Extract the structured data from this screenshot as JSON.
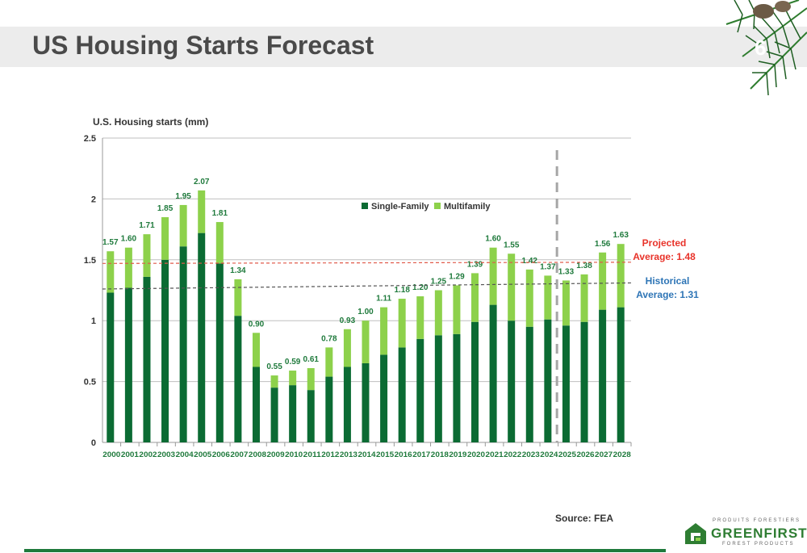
{
  "page": {
    "title": "US Housing Starts Forecast",
    "page_number": "6",
    "source": "Source: FEA",
    "logo": {
      "top_text": "PRODUITS FORESTIERS",
      "name": "GREENFIRST",
      "bottom_text": "FOREST PRODUCTS"
    }
  },
  "colors": {
    "single_family": "#0b6b33",
    "multifamily": "#8dd14b",
    "projected_line": "#e05a4a",
    "historical_line": "#555555",
    "projected_text": "#e8332a",
    "historical_text": "#2e75b6",
    "label_text": "#1f7a3c",
    "forecast_divider": "#a6a6a6"
  },
  "chart_data": {
    "type": "bar",
    "stacked": true,
    "ylabel": "U.S. Housing starts (mm)",
    "ylim": [
      0,
      2.5
    ],
    "yticks": [
      "0",
      "0.5",
      "1",
      "1.5",
      "2",
      "2.5"
    ],
    "categories": [
      "2000",
      "2001",
      "2002",
      "2003",
      "2004",
      "2005",
      "2006",
      "2007",
      "2008",
      "2009",
      "2010",
      "2011",
      "2012",
      "2013",
      "2014",
      "2015",
      "2016",
      "2017",
      "2018",
      "2019",
      "2020",
      "2021",
      "2022",
      "2023",
      "2024",
      "2025",
      "2026",
      "2027",
      "2028"
    ],
    "series": [
      {
        "name": "Single-Family",
        "values": [
          1.23,
          1.27,
          1.36,
          1.5,
          1.61,
          1.72,
          1.47,
          1.04,
          0.62,
          0.45,
          0.47,
          0.43,
          0.54,
          0.62,
          0.65,
          0.72,
          0.78,
          0.85,
          0.88,
          0.89,
          0.99,
          1.13,
          1.0,
          0.95,
          1.01,
          0.96,
          0.99,
          1.09,
          1.11
        ]
      },
      {
        "name": "Multifamily",
        "values": [
          0.34,
          0.33,
          0.35,
          0.35,
          0.34,
          0.35,
          0.34,
          0.3,
          0.28,
          0.1,
          0.12,
          0.18,
          0.24,
          0.31,
          0.35,
          0.39,
          0.4,
          0.35,
          0.37,
          0.4,
          0.4,
          0.47,
          0.55,
          0.47,
          0.36,
          0.37,
          0.39,
          0.47,
          0.52
        ]
      }
    ],
    "totals": [
      "1.57",
      "1.60",
      "1.71",
      "1.85",
      "1.95",
      "2.07",
      "1.81",
      "1.34",
      "0.90",
      "0.55",
      "0.59",
      "0.61",
      "0.78",
      "0.93",
      "1.00",
      "1.11",
      "1.18",
      "1.20",
      "1.25",
      "1.29",
      "1.39",
      "1.60",
      "1.55",
      "1.42",
      "1.37",
      "1.33",
      "1.38",
      "1.56",
      "1.63"
    ],
    "reference_lines": [
      {
        "name": "Projected",
        "label_line1": "Projected",
        "label_line2": "Average: 1.48",
        "y_start": 1.47,
        "y_end": 1.48
      },
      {
        "name": "Historical",
        "label_line1": "Historical",
        "label_line2": "Average: 1.31",
        "y_start": 1.26,
        "y_end": 1.31
      }
    ],
    "forecast_divider_between": [
      "2024",
      "2025"
    ],
    "grid": true,
    "legend_position": "top-center"
  }
}
